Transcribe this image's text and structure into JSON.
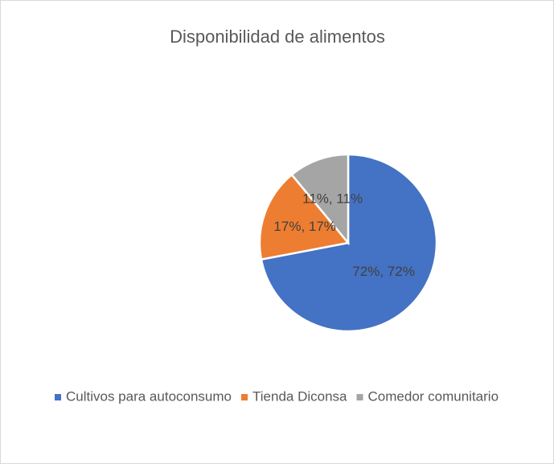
{
  "chart_data": {
    "type": "pie",
    "title": "Disponibilidad de alimentos",
    "categories": [
      "Cultivos para autoconsumo",
      "Tienda Diconsa",
      "Comedor comunitario"
    ],
    "values": [
      72,
      17,
      11
    ],
    "value_labels": [
      "72%, 72%",
      "17%, 17%",
      "11%, 11%"
    ],
    "colors": [
      "#4472c4",
      "#ed7d31",
      "#a5a5a5"
    ],
    "legend": "bottom"
  }
}
